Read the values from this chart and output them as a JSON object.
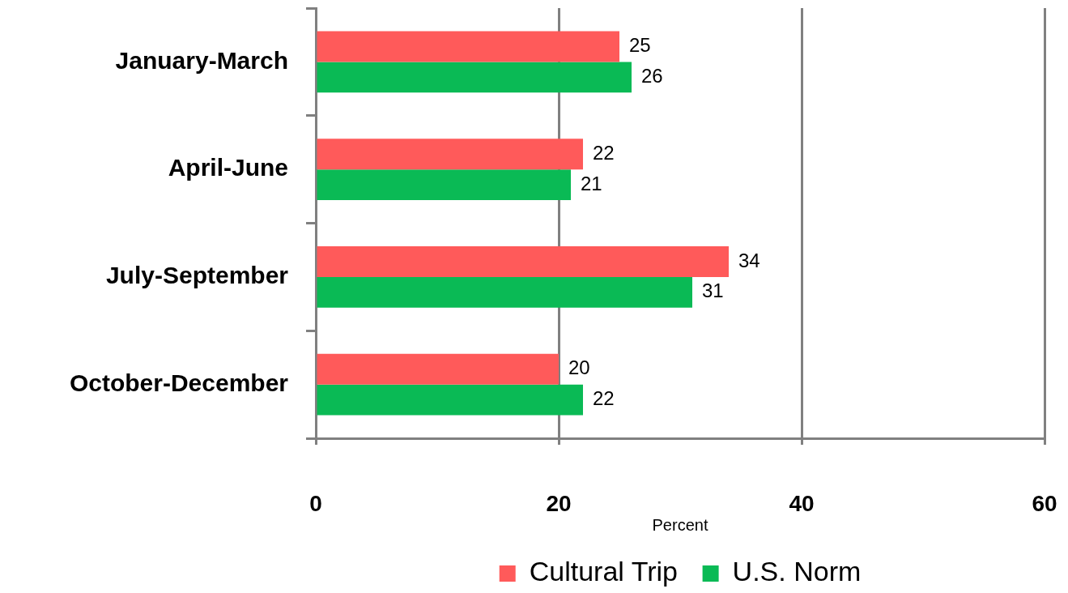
{
  "chart_data": {
    "type": "bar",
    "orientation": "horizontal",
    "categories": [
      "January-March",
      "April-June",
      "July-September",
      "October-December"
    ],
    "series": [
      {
        "name": "Cultural Trip",
        "color": "#ff5a5a",
        "values": [
          25,
          22,
          34,
          20
        ]
      },
      {
        "name": "U.S. Norm",
        "color": "#0aba55",
        "values": [
          26,
          21,
          31,
          22
        ]
      }
    ],
    "xlabel": "Percent",
    "xlim": [
      0,
      60
    ],
    "xticks": [
      0,
      20,
      40,
      60
    ],
    "grid": "x",
    "legend": "bottom",
    "data_labels": true
  }
}
